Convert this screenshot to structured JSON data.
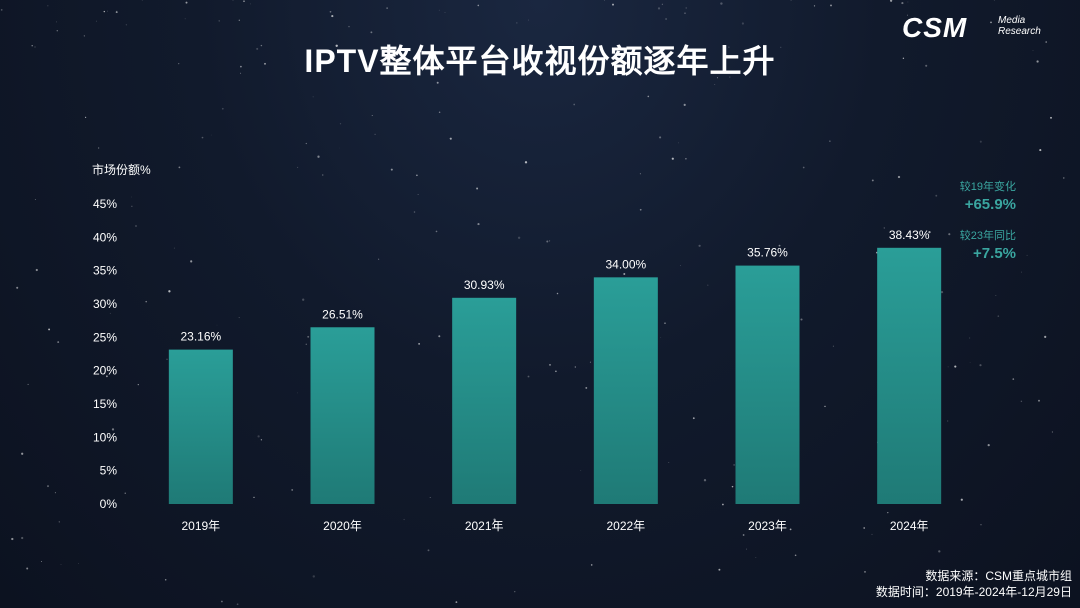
{
  "title": "IPTV整体平台收视份额逐年上升",
  "logo": {
    "main": "CSM",
    "sub1": "Media",
    "sub2": "Research"
  },
  "annotations": [
    {
      "label": "较19年变化",
      "value": "+65.9%"
    },
    {
      "label": "较23年同比",
      "value": "+7.5%"
    }
  ],
  "source": {
    "line1": "数据来源：CSM重点城市组",
    "line2": "数据时间：2019年-2024年-12月29日"
  },
  "colors": {
    "bar_top": "#2a9e98",
    "bar_bottom": "#1f7a76",
    "accent": "#3aa6a0"
  },
  "chart_data": {
    "type": "bar",
    "title": "IPTV整体平台收视份额逐年上升",
    "ylabel": "市场份额%",
    "xlabel": "",
    "categories": [
      "2019年",
      "2020年",
      "2021年",
      "2022年",
      "2023年",
      "2024年"
    ],
    "values": [
      23.16,
      26.51,
      30.93,
      34.0,
      35.76,
      38.43
    ],
    "value_labels": [
      "23.16%",
      "26.51%",
      "30.93%",
      "34.00%",
      "35.76%",
      "38.43%"
    ],
    "ylim": [
      0,
      45
    ],
    "yticks": [
      "0%",
      "5%",
      "10%",
      "15%",
      "20%",
      "25%",
      "30%",
      "35%",
      "40%",
      "45%"
    ],
    "grid": false,
    "legend": "none"
  }
}
